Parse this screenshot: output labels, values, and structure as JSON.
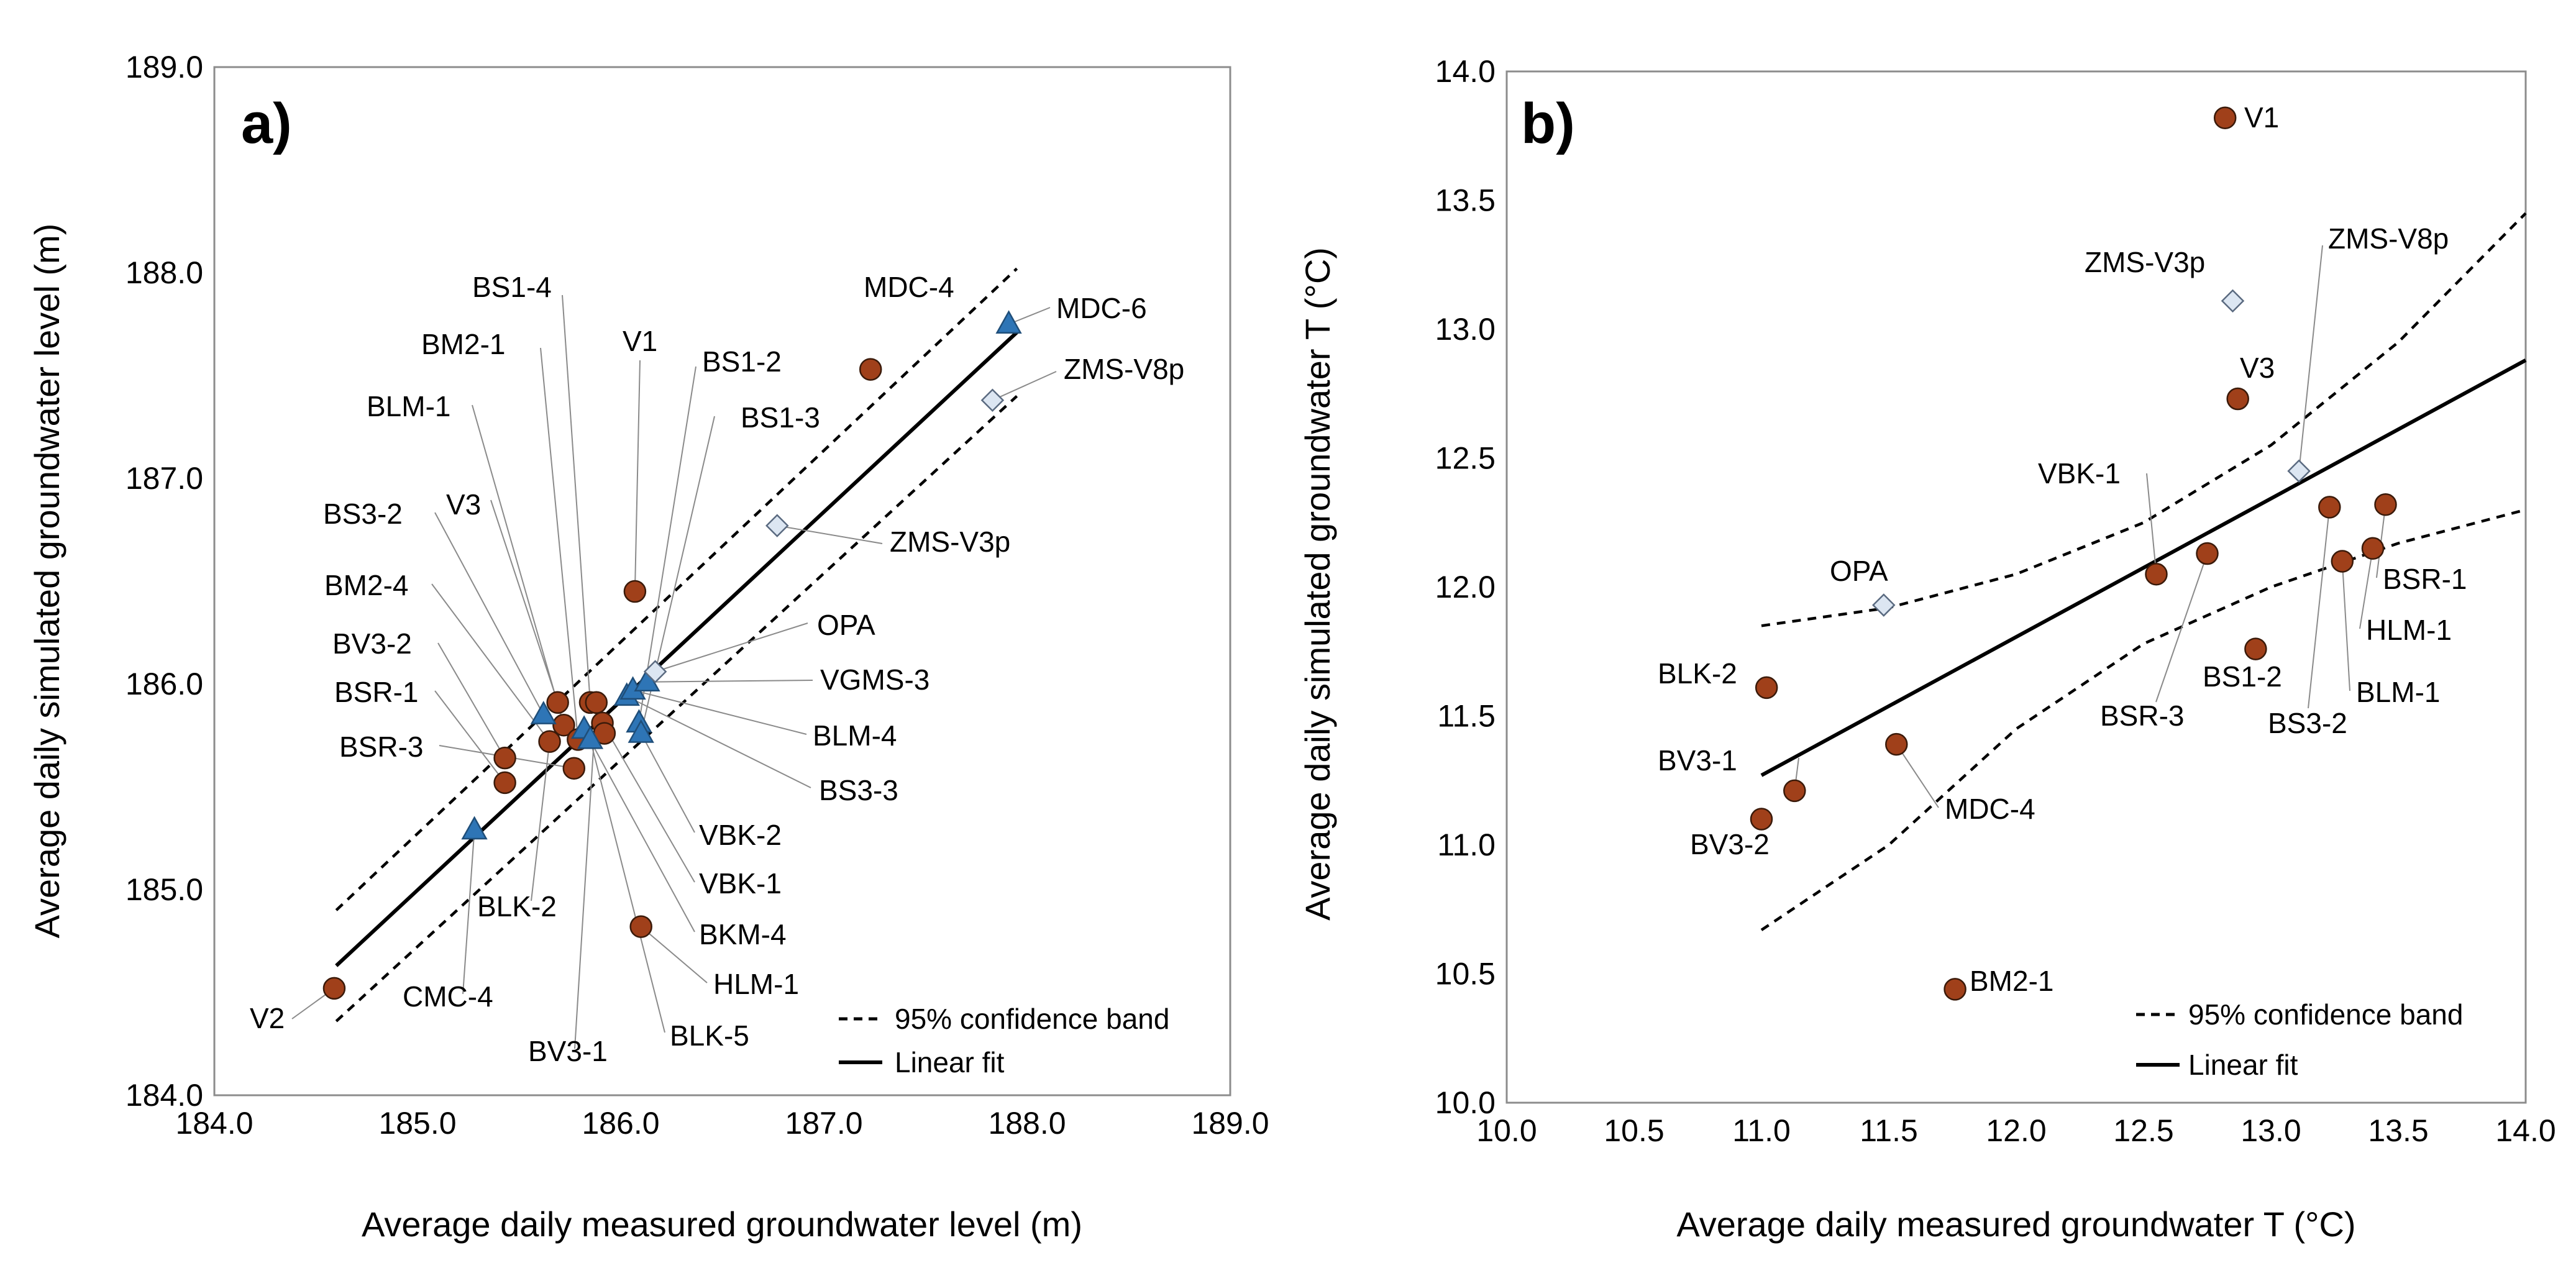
{
  "chart_data": [
    {
      "type": "scatter",
      "panel": "a)",
      "xlabel": "Average daily measured groundwater level (m)",
      "ylabel": "Average daily simulated groundwater level (m)",
      "xlim": [
        184.0,
        189.0
      ],
      "ylim": [
        184.0,
        189.0
      ],
      "xticks": [
        "184.0",
        "185.0",
        "186.0",
        "187.0",
        "188.0",
        "189.0"
      ],
      "yticks": [
        "184.0",
        "185.0",
        "186.0",
        "187.0",
        "188.0",
        "189.0"
      ],
      "grid": false,
      "legend": {
        "position": "bottom-right",
        "entries": [
          {
            "style": "dashed",
            "label": "95% confidence band"
          },
          {
            "style": "solid",
            "label": "Linear fit"
          }
        ]
      },
      "fit_line": [
        [
          184.6,
          184.63
        ],
        [
          187.95,
          187.71
        ]
      ],
      "confidence_band": {
        "upper": [
          [
            184.6,
            184.9
          ],
          [
            187.95,
            188.02
          ]
        ],
        "lower": [
          [
            184.6,
            184.36
          ],
          [
            187.95,
            187.4
          ]
        ]
      },
      "series": [
        {
          "name": "circles",
          "marker": "circle",
          "color": "#a0401a",
          "points": [
            [
              184.59,
              184.52
            ],
            [
              185.43,
              185.64
            ],
            [
              185.43,
              185.52
            ],
            [
              185.65,
              185.72
            ],
            [
              185.69,
              185.91
            ],
            [
              185.72,
              185.8
            ],
            [
              185.77,
              185.59
            ],
            [
              185.79,
              185.73
            ],
            [
              185.85,
              185.91
            ],
            [
              185.88,
              185.91
            ],
            [
              185.91,
              185.81
            ],
            [
              185.92,
              185.76
            ],
            [
              186.07,
              186.45
            ],
            [
              186.1,
              184.82
            ],
            [
              187.23,
              187.53
            ]
          ]
        },
        {
          "name": "triangles",
          "marker": "triangle",
          "color": "#2e75b6",
          "points": [
            [
              185.28,
              185.29
            ],
            [
              185.62,
              185.85
            ],
            [
              185.82,
              185.78
            ],
            [
              185.85,
              185.73
            ],
            [
              186.03,
              185.94
            ],
            [
              186.06,
              185.97
            ],
            [
              186.09,
              185.81
            ],
            [
              186.1,
              185.76
            ],
            [
              186.13,
              186.01
            ],
            [
              187.91,
              187.75
            ]
          ]
        },
        {
          "name": "diamonds",
          "marker": "diamond",
          "color": "#dce6f2",
          "points": [
            [
              186.77,
              186.77
            ],
            [
              186.17,
              186.06
            ],
            [
              187.83,
              187.38
            ]
          ]
        }
      ],
      "labels": [
        "MDC-4",
        "MDC-6",
        "BS1-4",
        "BM2-1",
        "V1",
        "BS1-2",
        "BLM-1",
        "BS1-3",
        "ZMS-V8p",
        "BS3-2",
        "V3",
        "ZMS-V3p",
        "BM2-4",
        "OPA",
        "BV3-2",
        "VGMS-3",
        "BSR-1",
        "BLM-4",
        "BSR-3",
        "BS3-3",
        "VBK-2",
        "VBK-1",
        "BLK-2",
        "BKM-4",
        "HLM-1",
        "V2",
        "CMC-4",
        "BV3-1",
        "BLK-5"
      ]
    },
    {
      "type": "scatter",
      "panel": "b)",
      "xlabel": "Average daily measured groundwater T (°C)",
      "ylabel": "Average daily simulated groundwater T (°C)",
      "xlim": [
        10.0,
        14.0
      ],
      "ylim": [
        10.0,
        14.0
      ],
      "xticks": [
        "10.0",
        "10.5",
        "11.0",
        "11.5",
        "12.0",
        "12.5",
        "13.0",
        "13.5",
        "14.0"
      ],
      "yticks": [
        "10.0",
        "10.5",
        "11.0",
        "11.5",
        "12.0",
        "12.5",
        "13.0",
        "13.5",
        "14.0"
      ],
      "grid": false,
      "legend": {
        "position": "bottom-right",
        "entries": [
          {
            "style": "dashed",
            "label": "95% confidence band"
          },
          {
            "style": "solid",
            "label": "Linear fit"
          }
        ]
      },
      "fit_line": [
        [
          11.0,
          11.27
        ],
        [
          14.0,
          12.88
        ]
      ],
      "confidence_band": {
        "upper": [
          [
            11.0,
            11.85
          ],
          [
            11.5,
            11.92
          ],
          [
            12.0,
            12.05
          ],
          [
            12.5,
            12.25
          ],
          [
            13.0,
            12.55
          ],
          [
            13.5,
            12.95
          ],
          [
            14.0,
            13.45
          ]
        ],
        "lower": [
          [
            11.0,
            10.67
          ],
          [
            11.5,
            11.0
          ],
          [
            12.0,
            11.45
          ],
          [
            12.5,
            11.78
          ],
          [
            13.0,
            12.0
          ],
          [
            13.5,
            12.17
          ],
          [
            14.0,
            12.3
          ]
        ]
      },
      "series": [
        {
          "name": "circles",
          "marker": "circle",
          "color": "#a0401a",
          "points": [
            [
              12.82,
              13.82
            ],
            [
              12.87,
              12.73
            ],
            [
              11.02,
              11.61
            ],
            [
              11.13,
              11.21
            ],
            [
              11.0,
              11.1
            ],
            [
              11.53,
              11.39
            ],
            [
              11.76,
              10.44
            ],
            [
              12.55,
              12.05
            ],
            [
              12.75,
              12.13
            ],
            [
              12.94,
              11.76
            ],
            [
              13.23,
              12.31
            ],
            [
              13.28,
              12.1
            ],
            [
              13.4,
              12.15
            ],
            [
              13.45,
              12.32
            ]
          ]
        },
        {
          "name": "diamonds",
          "marker": "diamond",
          "color": "#dce6f2",
          "points": [
            [
              12.85,
              13.11
            ],
            [
              13.11,
              12.45
            ],
            [
              11.48,
              11.93
            ]
          ]
        }
      ],
      "labels": [
        "V1",
        "ZMS-V3p",
        "ZMS-V8p",
        "V3",
        "VBK-1",
        "OPA",
        "BSR-1",
        "HLM-1",
        "BLM-1",
        "BLK-2",
        "BSR-3",
        "BS1-2",
        "BS3-2",
        "BV3-1",
        "MDC-4",
        "BV3-2",
        "BM2-1"
      ]
    }
  ]
}
